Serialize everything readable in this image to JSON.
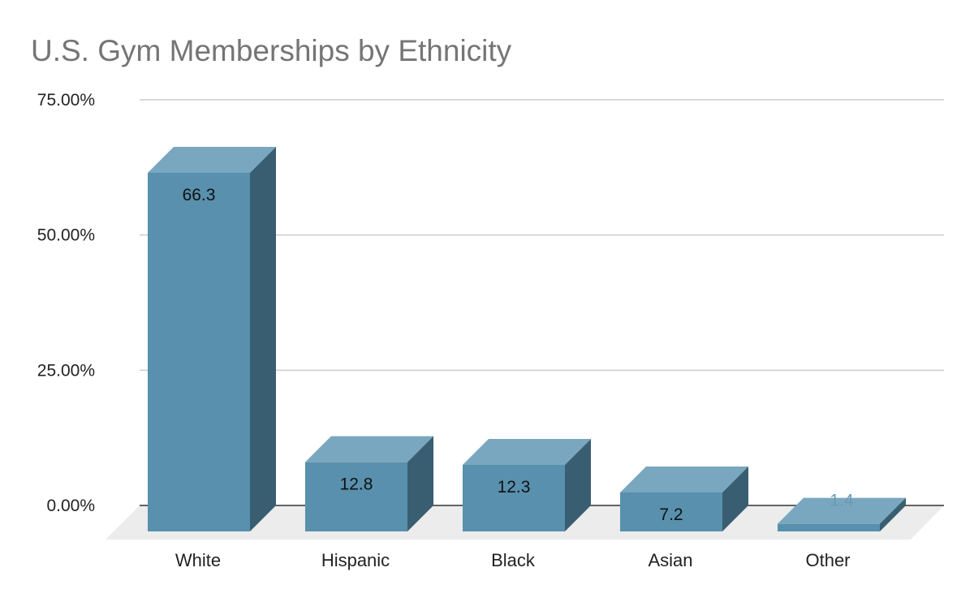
{
  "chart_data": {
    "type": "bar",
    "title": "U.S. Gym Memberships by Ethnicity",
    "categories": [
      "White",
      "Hispanic",
      "Black",
      "Asian",
      "Other"
    ],
    "values": [
      66.3,
      12.8,
      12.3,
      7.2,
      1.4
    ],
    "data_labels": [
      "66.3",
      "12.8",
      "12.3",
      "7.2",
      "1.4"
    ],
    "y_ticks": [
      "0.00%",
      "25.00%",
      "50.00%",
      "75.00%"
    ],
    "y_tick_values": [
      0,
      25,
      50,
      75
    ],
    "ylim": [
      0,
      75
    ],
    "xlabel": "",
    "ylabel": "",
    "grid": true,
    "legend": "none",
    "style": "3d-column",
    "colors": {
      "bar_front": "#5890ad",
      "bar_top": "#79a7bf",
      "bar_side": "#3a5e71",
      "floor": "#ececec",
      "gridline": "#cccccc",
      "axis_line": "#333333",
      "title": "#757575",
      "label_inside": "#111111",
      "label_outside": "#6a9ab4"
    }
  }
}
